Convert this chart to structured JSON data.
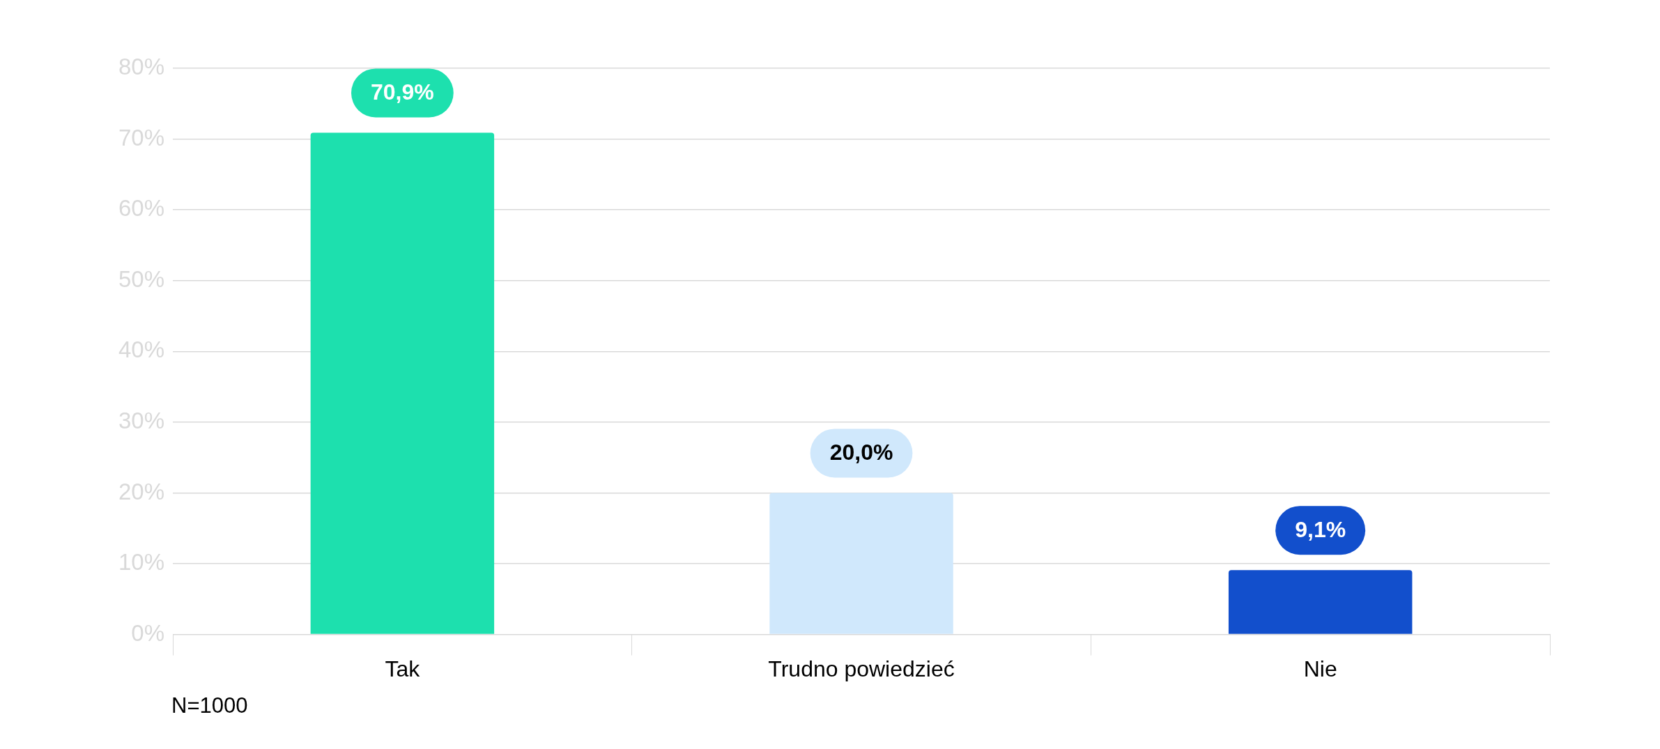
{
  "chart_data": {
    "type": "bar",
    "categories": [
      "Tak",
      "Trudno powiedzieć",
      "Nie"
    ],
    "values": [
      70.9,
      20.0,
      9.1
    ],
    "colors": [
      "#1de0ae",
      "#d0e8fc",
      "#124fcc"
    ],
    "value_labels": [
      "70,9%",
      "20,0%",
      "9,1%"
    ],
    "ylim": [
      0,
      80
    ],
    "yticks": [
      {
        "value": 0,
        "label": "0%"
      },
      {
        "value": 10,
        "label": "10%"
      },
      {
        "value": 20,
        "label": "20%"
      },
      {
        "value": 30,
        "label": "30%"
      },
      {
        "value": 40,
        "label": "40%"
      },
      {
        "value": 50,
        "label": "50%"
      },
      {
        "value": 60,
        "label": "60%"
      },
      {
        "value": 70,
        "label": "70%"
      },
      {
        "value": 80,
        "label": "80%"
      }
    ],
    "grid": "y",
    "legend": false,
    "annotations": [
      "N=1000"
    ]
  }
}
